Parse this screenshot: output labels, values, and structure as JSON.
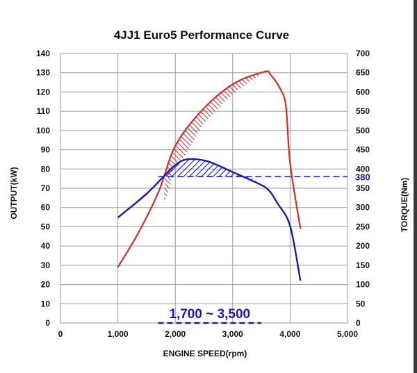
{
  "chart_data": {
    "type": "line",
    "title": "4JJ1 Euro5 Performance Curve",
    "xlabel": "ENGINE SPEED(rpm)",
    "ylabel": "OUTPUT(kW)",
    "y2label": "TORQUE(Nm)",
    "xlim": [
      0,
      5000
    ],
    "ylim": [
      0,
      140
    ],
    "y2lim": [
      0,
      700
    ],
    "x_ticks": [
      "0",
      "1,000",
      "2,000",
      "3,000",
      "4,000",
      "5,000"
    ],
    "y_ticks": [
      "0",
      "10",
      "20",
      "30",
      "40",
      "50",
      "60",
      "70",
      "80",
      "90",
      "100",
      "110",
      "120",
      "130",
      "140"
    ],
    "y2_ticks": [
      "0",
      "50",
      "100",
      "150",
      "200",
      "250",
      "300",
      "350",
      "400",
      "450",
      "500",
      "550",
      "600",
      "650",
      "700"
    ],
    "grid": true,
    "series": [
      {
        "name": "Output (kW)",
        "axis": "left",
        "color": "#d42a2a",
        "x": [
          1000,
          1360,
          1720,
          2000,
          2450,
          3000,
          3550,
          3660,
          3840,
          3930,
          4000,
          4180
        ],
        "values": [
          29,
          47,
          69,
          92,
          110,
          124,
          130.5,
          129,
          121,
          112,
          83,
          49
        ]
      },
      {
        "name": "Torque (Nm)",
        "axis": "right",
        "color": "#1a1aa8",
        "x": [
          1000,
          1480,
          1840,
          2000,
          2200,
          2560,
          3000,
          3300,
          3600,
          3780,
          4000,
          4180
        ],
        "values": [
          274,
          333,
          387,
          410,
          425,
          420,
          392,
          372,
          349,
          311,
          252,
          110
        ]
      }
    ],
    "annotations": [
      {
        "type": "hline",
        "axis": "right",
        "value": 380,
        "label": "380",
        "from_x": 1700,
        "to_x": 5000,
        "style": "dashed",
        "color": "#1a1aa8"
      },
      {
        "type": "range",
        "axis": "x",
        "from": 1700,
        "to": 3500,
        "label": "1,700 ~ 3,500",
        "style": "dashed",
        "color": "#1a1aa8"
      },
      {
        "type": "hatched-area",
        "series": "Torque (Nm)",
        "above": 380,
        "color": "#1a1aa8"
      },
      {
        "type": "hatched-area",
        "series": "Output (kW)",
        "note": "band between output curve and lower reference",
        "color": "#d42a2a"
      }
    ]
  }
}
